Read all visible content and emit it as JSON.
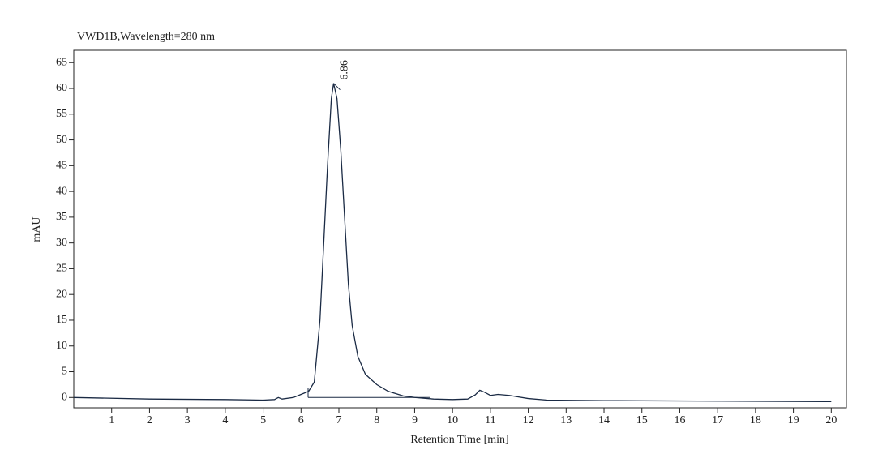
{
  "chart_data": {
    "type": "line",
    "title": "VWD1B,Wavelength=280 nm",
    "x_label": "Retention Time [min]",
    "y_label": "mAU",
    "xlim": [
      0,
      20.4
    ],
    "ylim": [
      -2,
      67.4
    ],
    "xticks": [
      1,
      2,
      3,
      4,
      5,
      6,
      7,
      8,
      9,
      10,
      11,
      12,
      13,
      14,
      15,
      16,
      17,
      18,
      19,
      20
    ],
    "yticks": [
      0,
      5,
      10,
      15,
      20,
      25,
      30,
      35,
      40,
      45,
      50,
      55,
      60,
      65
    ],
    "series": [
      {
        "color": "#1a2a44",
        "x": [
          0,
          2,
          4,
          5,
          5.3,
          5.4,
          5.5,
          5.8,
          6.0,
          6.2,
          6.35,
          6.5,
          6.6,
          6.7,
          6.8,
          6.86,
          6.95,
          7.05,
          7.15,
          7.25,
          7.35,
          7.5,
          7.7,
          8.0,
          8.3,
          8.7,
          9.0,
          9.5,
          10.0,
          10.4,
          10.6,
          10.72,
          10.85,
          11.0,
          11.2,
          11.5,
          12.0,
          12.5,
          14,
          17,
          20
        ],
        "values": [
          0,
          -0.3,
          -0.4,
          -0.5,
          -0.4,
          0,
          -0.3,
          0,
          0.6,
          1.2,
          3,
          15,
          30,
          45,
          58,
          61,
          58,
          48,
          35,
          22,
          14,
          8,
          4.5,
          2.5,
          1.2,
          0.3,
          0,
          -0.3,
          -0.4,
          -0.3,
          0.5,
          1.4,
          1.0,
          0.4,
          0.6,
          0.4,
          -0.2,
          -0.5,
          -0.6,
          -0.7,
          -0.8
        ]
      }
    ],
    "annotations": [
      {
        "x": 6.86,
        "y": 61,
        "label": "6.86"
      }
    ]
  }
}
